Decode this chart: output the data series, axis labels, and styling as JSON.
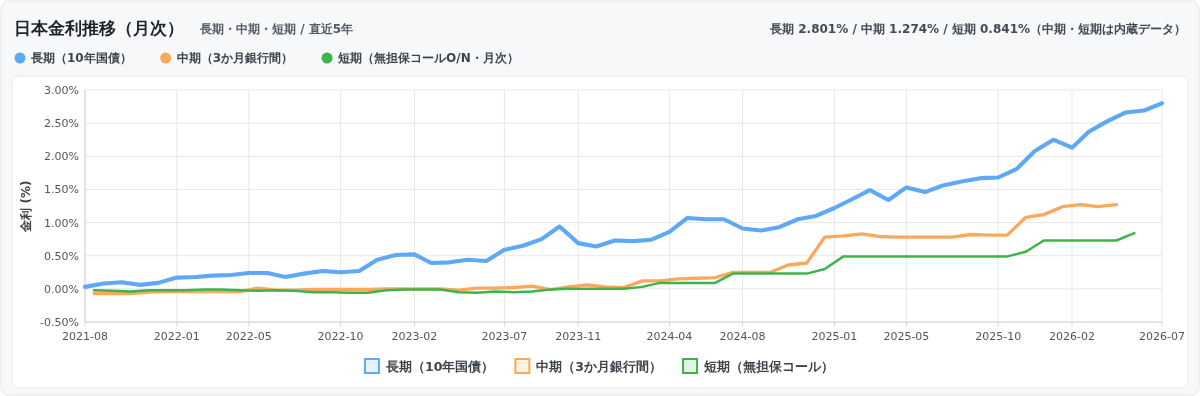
{
  "chart_data": {
    "type": "line",
    "title": "日本金利推移（月次）",
    "subtitle": "長期・中期・短期 / 直近5年",
    "annotations": [
      "長期 2.801% / 中期 1.274% / 短期 0.841%（中期・短期は内蔵データ）",
      "長期（10年国債）",
      "中期（3か月銀行間）",
      "短期（無担保コールO/N・月次）"
    ],
    "ylabel": "金利 (%)",
    "xlim": [
      "2021-08",
      "2026-07"
    ],
    "xticks": [
      "2021-08",
      "2022-01",
      "2022-05",
      "2022-10",
      "2023-02",
      "2023-07",
      "2023-11",
      "2024-04",
      "2024-08",
      "2025-01",
      "2025-05",
      "2025-10",
      "2026-02",
      "2026-07"
    ],
    "ylim": [
      -0.5,
      3
    ],
    "yticks": [
      {
        "value": -0.5,
        "label": "-0.50%"
      },
      {
        "value": 0,
        "label": "0.00%"
      },
      {
        "value": 0.5,
        "label": "0.50%"
      },
      {
        "value": 1,
        "label": "1.00%"
      },
      {
        "value": 1.5,
        "label": "1.50%"
      },
      {
        "value": 2,
        "label": "2.00%"
      },
      {
        "value": 2.5,
        "label": "2.50%"
      },
      {
        "value": 3,
        "label": "3.00%"
      }
    ],
    "grid": true,
    "legend": "bottom",
    "marker": "none",
    "line_style": "solid",
    "series": [
      {
        "name": "長期（10年国債）",
        "color": "#5ea8f5",
        "x": [
          "2021-08",
          "2021-09",
          "2021-10",
          "2021-11",
          "2021-12",
          "2022-01",
          "2022-02",
          "2022-03",
          "2022-04",
          "2022-05",
          "2022-06",
          "2022-07",
          "2022-08",
          "2022-09",
          "2022-10",
          "2022-11",
          "2022-12",
          "2023-01",
          "2023-02",
          "2023-03",
          "2023-04",
          "2023-05",
          "2023-06",
          "2023-07",
          "2023-08",
          "2023-09",
          "2023-10",
          "2023-11",
          "2023-12",
          "2024-01",
          "2024-02",
          "2024-03",
          "2024-04",
          "2024-05",
          "2024-06",
          "2024-07",
          "2024-08",
          "2024-09",
          "2024-10",
          "2024-11",
          "2024-12",
          "2025-01",
          "2025-02",
          "2025-03",
          "2025-04",
          "2025-05",
          "2025-06",
          "2025-07",
          "2025-08",
          "2025-09",
          "2025-10",
          "2025-11",
          "2025-12",
          "2026-01",
          "2026-02",
          "2026-03",
          "2026-04",
          "2026-05",
          "2026-06",
          "2026-07"
        ],
        "values": [
          0.03,
          0.08,
          0.1,
          0.06,
          0.09,
          0.17,
          0.18,
          0.2,
          0.21,
          0.24,
          0.24,
          0.18,
          0.23,
          0.27,
          0.25,
          0.27,
          0.44,
          0.51,
          0.52,
          0.39,
          0.4,
          0.44,
          0.42,
          0.59,
          0.65,
          0.75,
          0.94,
          0.69,
          0.64,
          0.73,
          0.72,
          0.74,
          0.86,
          1.07,
          1.05,
          1.05,
          0.91,
          0.88,
          0.93,
          1.05,
          1.1,
          1.22,
          1.36,
          1.49,
          1.34,
          1.53,
          1.46,
          1.56,
          1.62,
          1.67,
          1.68,
          1.81,
          2.08,
          2.25,
          2.13,
          2.37,
          2.53,
          2.66,
          2.69,
          2.8
        ]
      },
      {
        "name": "中期（3か月銀行間）",
        "color": "#f9a95c",
        "x": [
          "2021-08-16",
          "2021-09-16",
          "2021-10-16",
          "2021-11-16",
          "2021-12-16",
          "2022-01-16",
          "2022-02-16",
          "2022-03-16",
          "2022-04-16",
          "2022-05-16",
          "2022-06-16",
          "2022-07-16",
          "2022-08-16",
          "2022-09-16",
          "2022-10-16",
          "2022-11-16",
          "2022-12-16",
          "2023-01-16",
          "2023-02-16",
          "2023-03-16",
          "2023-04-16",
          "2023-05-16",
          "2023-06-16",
          "2023-07-16",
          "2023-08-16",
          "2023-09-16",
          "2023-10-16",
          "2023-11-16",
          "2023-12-16",
          "2024-01-16",
          "2024-02-16",
          "2024-03-16",
          "2024-04-16",
          "2024-05-16",
          "2024-06-16",
          "2024-07-16",
          "2024-08-16",
          "2024-09-16",
          "2024-10-16",
          "2024-11-16",
          "2024-12-16",
          "2025-01-16",
          "2025-02-16",
          "2025-03-16",
          "2025-04-16",
          "2025-05-16",
          "2025-06-16",
          "2025-07-16",
          "2025-08-16",
          "2025-09-16",
          "2025-10-16",
          "2025-11-16",
          "2025-12-16",
          "2026-01-16",
          "2026-02-16",
          "2026-03-16",
          "2026-04-16"
        ],
        "values": [
          -0.07,
          -0.07,
          -0.07,
          -0.05,
          -0.04,
          -0.04,
          -0.04,
          -0.04,
          -0.04,
          0.01,
          -0.02,
          -0.02,
          -0.01,
          -0.01,
          -0.01,
          -0.01,
          0.0,
          0.0,
          0.0,
          0.0,
          -0.02,
          0.01,
          0.01,
          0.02,
          0.04,
          -0.01,
          0.03,
          0.06,
          0.03,
          0.02,
          0.12,
          0.12,
          0.15,
          0.16,
          0.17,
          0.25,
          0.25,
          0.25,
          0.36,
          0.39,
          0.78,
          0.8,
          0.83,
          0.79,
          0.78,
          0.78,
          0.78,
          0.78,
          0.82,
          0.81,
          0.81,
          1.08,
          1.12,
          1.24,
          1.27,
          1.24,
          1.27
        ]
      },
      {
        "name": "短期（無担保コール）",
        "color": "#3bb54a",
        "x": [
          "2021-08-16",
          "2021-09-16",
          "2021-10-16",
          "2021-11-16",
          "2021-12-16",
          "2022-01-16",
          "2022-02-16",
          "2022-03-16",
          "2022-04-16",
          "2022-05-16",
          "2022-06-16",
          "2022-07-16",
          "2022-08-16",
          "2022-09-16",
          "2022-10-16",
          "2022-11-16",
          "2022-12-16",
          "2023-01-16",
          "2023-02-16",
          "2023-03-16",
          "2023-04-16",
          "2023-05-16",
          "2023-06-16",
          "2023-07-16",
          "2023-08-16",
          "2023-09-16",
          "2023-10-16",
          "2023-11-16",
          "2023-12-16",
          "2024-01-16",
          "2024-02-16",
          "2024-03-16",
          "2024-04-16",
          "2024-05-16",
          "2024-06-16",
          "2024-07-16",
          "2024-08-16",
          "2024-09-16",
          "2024-10-16",
          "2024-11-16",
          "2024-12-16",
          "2025-01-16",
          "2025-02-16",
          "2025-03-16",
          "2025-04-16",
          "2025-05-16",
          "2025-06-16",
          "2025-07-16",
          "2025-08-16",
          "2025-09-16",
          "2025-10-16",
          "2025-11-16",
          "2025-12-16",
          "2026-01-16",
          "2026-02-16",
          "2026-03-16",
          "2026-04-16",
          "2026-05-16"
        ],
        "values": [
          -0.02,
          -0.03,
          -0.04,
          -0.02,
          -0.02,
          -0.02,
          -0.01,
          -0.01,
          -0.02,
          -0.03,
          -0.02,
          -0.03,
          -0.05,
          -0.05,
          -0.06,
          -0.06,
          -0.02,
          -0.01,
          -0.01,
          -0.01,
          -0.05,
          -0.06,
          -0.04,
          -0.05,
          -0.04,
          -0.01,
          0.0,
          0.0,
          0.0,
          0.0,
          0.03,
          0.09,
          0.09,
          0.09,
          0.09,
          0.23,
          0.23,
          0.23,
          0.23,
          0.23,
          0.3,
          0.49,
          0.49,
          0.49,
          0.49,
          0.49,
          0.49,
          0.49,
          0.49,
          0.49,
          0.49,
          0.56,
          0.73,
          0.73,
          0.73,
          0.73,
          0.73,
          0.84
        ]
      }
    ]
  }
}
